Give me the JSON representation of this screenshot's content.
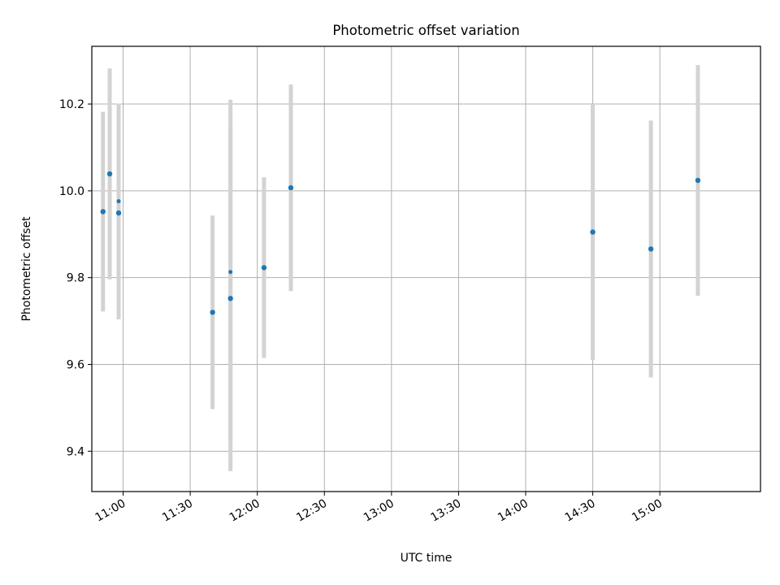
{
  "chart_data": {
    "type": "scatter",
    "title": "Photometric offset variation",
    "xlabel": "UTC time",
    "ylabel": "Photometric offset",
    "x_ticks": [
      "11:00",
      "11:30",
      "12:00",
      "12:30",
      "13:00",
      "13:30",
      "14:00",
      "14:30",
      "15:00"
    ],
    "y_ticks": [
      "9.4",
      "9.6",
      "9.8",
      "10.0",
      "10.2"
    ],
    "xlim": [
      "10:46",
      "15:45"
    ],
    "ylim": [
      9.307,
      10.333
    ],
    "grid": true,
    "colors": {
      "point": "#1f77b4",
      "errorbar": "#d3d3d3",
      "grid": "#b0b0b0"
    },
    "points": [
      {
        "x": "10:51",
        "y": 9.952,
        "err": 0.23,
        "marker": "large"
      },
      {
        "x": "10:54",
        "y": 10.039,
        "err": 0.243,
        "marker": "large"
      },
      {
        "x": "10:58",
        "y": 9.976,
        "err": 0.225,
        "marker": "small"
      },
      {
        "x": "10:58",
        "y": 9.949,
        "err": 0.245,
        "marker": "large"
      },
      {
        "x": "11:40",
        "y": 9.72,
        "err": 0.223,
        "marker": "large"
      },
      {
        "x": "11:48",
        "y": 9.813,
        "err": 0.397,
        "marker": "small"
      },
      {
        "x": "11:48",
        "y": 9.752,
        "err": 0.398,
        "marker": "large"
      },
      {
        "x": "12:03",
        "y": 9.823,
        "err": 0.208,
        "marker": "large"
      },
      {
        "x": "12:15",
        "y": 10.007,
        "err": 0.238,
        "marker": "large"
      },
      {
        "x": "14:30",
        "y": 9.905,
        "err": 0.295,
        "marker": "large"
      },
      {
        "x": "14:56",
        "y": 9.866,
        "err": 0.296,
        "marker": "large"
      },
      {
        "x": "15:17",
        "y": 10.024,
        "err": 0.266,
        "marker": "large"
      }
    ]
  }
}
